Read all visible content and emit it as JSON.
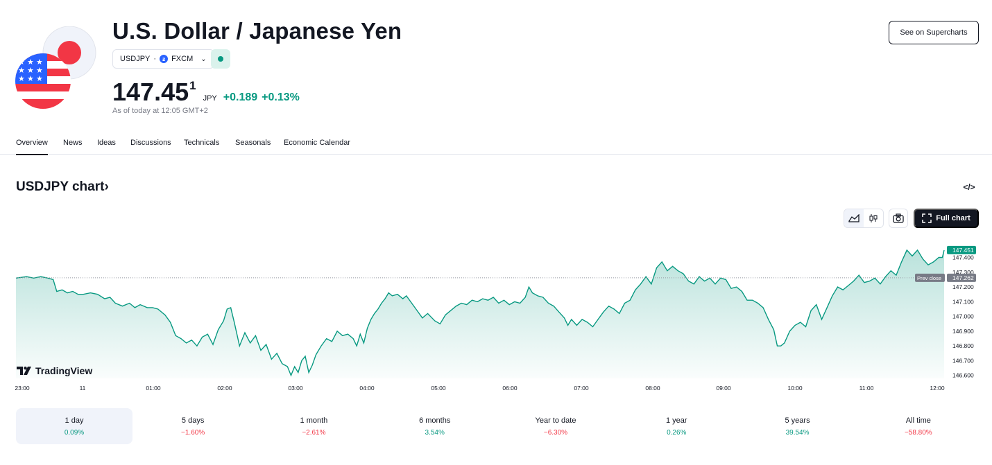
{
  "header": {
    "title": "U.S. Dollar / Japanese Yen",
    "symbol": "USDJPY",
    "exchange_separator": "·",
    "exchange": "FXCM",
    "exchange_icon": "fxcm-logo-icon",
    "price_main": "147.45",
    "price_sup": "1",
    "currency": "JPY",
    "change_abs": "+0.189",
    "change_pct": "+0.13%",
    "as_of": "As of today at 12:05 GMT+2",
    "supercharts_label": "See on Supercharts",
    "market_status_color": "#089981"
  },
  "tabs": [
    "Overview",
    "News",
    "Ideas",
    "Discussions",
    "Technicals",
    "Seasonals",
    "Economic Calendar"
  ],
  "chart_section": {
    "title": "USDJPY chart",
    "title_chevron": "›",
    "embed_icon_label": "</>",
    "full_chart_label": "Full chart",
    "watermark": "TradingView"
  },
  "chart_data": {
    "type": "area",
    "y_ticks": [
      "147.400",
      "147.300",
      "147.200",
      "147.100",
      "147.000",
      "146.900",
      "146.800",
      "146.700",
      "146.600"
    ],
    "ylim": [
      146.58,
      147.52
    ],
    "x_ticks": [
      "23:00",
      "11",
      "01:00",
      "02:00",
      "03:00",
      "04:00",
      "05:00",
      "06:00",
      "07:00",
      "08:00",
      "09:00",
      "10:00",
      "11:00",
      "12:00"
    ],
    "last_price_label": "147.451",
    "prev_close_label": "Prev close",
    "prev_close_value": 147.262,
    "prev_close_text": "147.262",
    "line_color": "#089981",
    "points": [
      [
        0,
        147.26
      ],
      [
        0.3,
        147.27
      ],
      [
        0.5,
        147.26
      ],
      [
        0.7,
        147.27
      ],
      [
        0.9,
        147.26
      ],
      [
        1.05,
        147.25
      ],
      [
        1.15,
        147.17
      ],
      [
        1.3,
        147.18
      ],
      [
        1.45,
        147.16
      ],
      [
        1.6,
        147.17
      ],
      [
        1.75,
        147.15
      ],
      [
        1.9,
        147.15
      ],
      [
        2.1,
        147.16
      ],
      [
        2.3,
        147.15
      ],
      [
        2.5,
        147.12
      ],
      [
        2.65,
        147.13
      ],
      [
        2.8,
        147.09
      ],
      [
        3.0,
        147.07
      ],
      [
        3.2,
        147.09
      ],
      [
        3.35,
        147.06
      ],
      [
        3.5,
        147.08
      ],
      [
        3.7,
        147.06
      ],
      [
        3.85,
        147.06
      ],
      [
        4.0,
        147.05
      ],
      [
        4.2,
        147.01
      ],
      [
        4.35,
        146.96
      ],
      [
        4.5,
        146.87
      ],
      [
        4.65,
        146.85
      ],
      [
        4.8,
        146.82
      ],
      [
        4.95,
        146.84
      ],
      [
        5.1,
        146.8
      ],
      [
        5.25,
        146.86
      ],
      [
        5.4,
        146.88
      ],
      [
        5.55,
        146.81
      ],
      [
        5.7,
        146.91
      ],
      [
        5.85,
        146.97
      ],
      [
        5.95,
        147.05
      ],
      [
        6.05,
        147.06
      ],
      [
        6.15,
        146.96
      ],
      [
        6.3,
        146.8
      ],
      [
        6.45,
        146.89
      ],
      [
        6.6,
        146.82
      ],
      [
        6.75,
        146.87
      ],
      [
        6.9,
        146.77
      ],
      [
        7.05,
        146.81
      ],
      [
        7.2,
        146.71
      ],
      [
        7.35,
        146.75
      ],
      [
        7.5,
        146.68
      ],
      [
        7.65,
        146.66
      ],
      [
        7.75,
        146.6
      ],
      [
        7.85,
        146.66
      ],
      [
        7.95,
        146.62
      ],
      [
        8.05,
        146.7
      ],
      [
        8.15,
        146.73
      ],
      [
        8.25,
        146.62
      ],
      [
        8.35,
        146.67
      ],
      [
        8.45,
        146.74
      ],
      [
        8.6,
        146.8
      ],
      [
        8.75,
        146.85
      ],
      [
        8.9,
        146.83
      ],
      [
        9.05,
        146.9
      ],
      [
        9.2,
        146.87
      ],
      [
        9.35,
        146.88
      ],
      [
        9.5,
        146.85
      ],
      [
        9.6,
        146.8
      ],
      [
        9.7,
        146.88
      ],
      [
        9.8,
        146.82
      ],
      [
        9.9,
        146.92
      ],
      [
        10.0,
        146.98
      ],
      [
        10.1,
        147.02
      ],
      [
        10.2,
        147.05
      ],
      [
        10.3,
        147.09
      ],
      [
        10.4,
        147.12
      ],
      [
        10.5,
        147.16
      ],
      [
        10.6,
        147.14
      ],
      [
        10.75,
        147.15
      ],
      [
        10.9,
        147.12
      ],
      [
        11.0,
        147.14
      ],
      [
        11.15,
        147.09
      ],
      [
        11.3,
        147.04
      ],
      [
        11.45,
        146.99
      ],
      [
        11.6,
        147.02
      ],
      [
        11.8,
        146.97
      ],
      [
        11.95,
        146.95
      ],
      [
        12.1,
        147.01
      ],
      [
        12.25,
        147.04
      ],
      [
        12.4,
        147.07
      ],
      [
        12.55,
        147.09
      ],
      [
        12.7,
        147.08
      ],
      [
        12.85,
        147.11
      ],
      [
        13.0,
        147.1
      ],
      [
        13.15,
        147.12
      ],
      [
        13.3,
        147.11
      ],
      [
        13.45,
        147.13
      ],
      [
        13.6,
        147.09
      ],
      [
        13.75,
        147.11
      ],
      [
        13.9,
        147.08
      ],
      [
        14.05,
        147.1
      ],
      [
        14.2,
        147.09
      ],
      [
        14.35,
        147.13
      ],
      [
        14.45,
        147.2
      ],
      [
        14.55,
        147.16
      ],
      [
        14.7,
        147.14
      ],
      [
        14.85,
        147.13
      ],
      [
        15.0,
        147.09
      ],
      [
        15.15,
        147.07
      ],
      [
        15.3,
        147.03
      ],
      [
        15.45,
        146.99
      ],
      [
        15.55,
        146.94
      ],
      [
        15.65,
        146.98
      ],
      [
        15.8,
        146.94
      ],
      [
        15.95,
        146.98
      ],
      [
        16.1,
        146.96
      ],
      [
        16.25,
        146.93
      ],
      [
        16.4,
        146.98
      ],
      [
        16.55,
        147.03
      ],
      [
        16.7,
        147.07
      ],
      [
        16.85,
        147.05
      ],
      [
        17.0,
        147.02
      ],
      [
        17.15,
        147.09
      ],
      [
        17.3,
        147.11
      ],
      [
        17.45,
        147.18
      ],
      [
        17.6,
        147.22
      ],
      [
        17.75,
        147.27
      ],
      [
        17.9,
        147.22
      ],
      [
        18.05,
        147.33
      ],
      [
        18.2,
        147.37
      ],
      [
        18.35,
        147.31
      ],
      [
        18.5,
        147.34
      ],
      [
        18.65,
        147.31
      ],
      [
        18.8,
        147.29
      ],
      [
        18.95,
        147.24
      ],
      [
        19.1,
        147.22
      ],
      [
        19.25,
        147.27
      ],
      [
        19.4,
        147.24
      ],
      [
        19.55,
        147.26
      ],
      [
        19.7,
        147.22
      ],
      [
        19.85,
        147.26
      ],
      [
        20.0,
        147.25
      ],
      [
        20.15,
        147.19
      ],
      [
        20.3,
        147.2
      ],
      [
        20.45,
        147.17
      ],
      [
        20.6,
        147.11
      ],
      [
        20.75,
        147.11
      ],
      [
        20.9,
        147.09
      ],
      [
        21.05,
        147.06
      ],
      [
        21.2,
        146.98
      ],
      [
        21.35,
        146.91
      ],
      [
        21.45,
        146.8
      ],
      [
        21.55,
        146.8
      ],
      [
        21.65,
        146.82
      ],
      [
        21.8,
        146.9
      ],
      [
        21.95,
        146.94
      ],
      [
        22.1,
        146.96
      ],
      [
        22.25,
        146.93
      ],
      [
        22.4,
        147.04
      ],
      [
        22.55,
        147.08
      ],
      [
        22.7,
        146.98
      ],
      [
        22.85,
        147.06
      ],
      [
        23.0,
        147.14
      ],
      [
        23.15,
        147.2
      ],
      [
        23.3,
        147.18
      ],
      [
        23.45,
        147.21
      ],
      [
        23.6,
        147.24
      ],
      [
        23.75,
        147.28
      ],
      [
        23.9,
        147.23
      ],
      [
        24.05,
        147.24
      ],
      [
        24.2,
        147.26
      ],
      [
        24.35,
        147.22
      ],
      [
        24.5,
        147.27
      ],
      [
        24.65,
        147.31
      ],
      [
        24.8,
        147.28
      ],
      [
        24.95,
        147.37
      ],
      [
        25.1,
        147.45
      ],
      [
        25.25,
        147.41
      ],
      [
        25.4,
        147.45
      ],
      [
        25.55,
        147.39
      ],
      [
        25.7,
        147.35
      ],
      [
        25.85,
        147.37
      ],
      [
        26.0,
        147.4
      ],
      [
        26.1,
        147.4
      ],
      [
        26.15,
        147.45
      ]
    ]
  },
  "ranges": [
    {
      "label": "1 day",
      "value": "0.09%",
      "dir": "pos"
    },
    {
      "label": "5 days",
      "value": "−1.60%",
      "dir": "neg"
    },
    {
      "label": "1 month",
      "value": "−2.61%",
      "dir": "neg"
    },
    {
      "label": "6 months",
      "value": "3.54%",
      "dir": "pos"
    },
    {
      "label": "Year to date",
      "value": "−6.30%",
      "dir": "neg"
    },
    {
      "label": "1 year",
      "value": "0.26%",
      "dir": "pos"
    },
    {
      "label": "5 years",
      "value": "39.54%",
      "dir": "pos"
    },
    {
      "label": "All time",
      "value": "−58.80%",
      "dir": "neg"
    }
  ],
  "colors": {
    "positive": "#089981",
    "negative": "#f23645",
    "accent_dark": "#131722"
  }
}
